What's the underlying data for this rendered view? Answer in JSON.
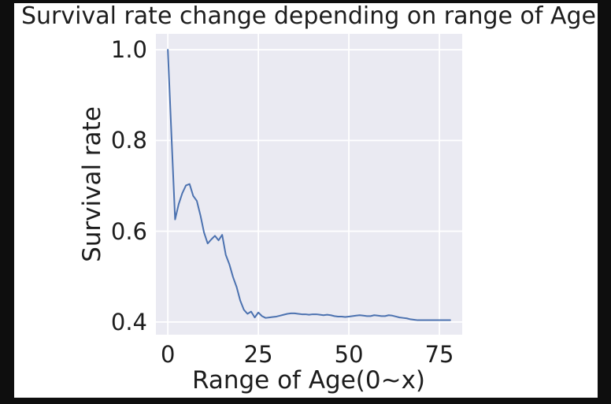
{
  "window": {
    "background_color": "#0e0e0e",
    "figure_background_color": "#ffffff"
  },
  "chart_data": {
    "type": "line",
    "title": "Survival rate change depending on range of Age",
    "xlabel": "Range of Age(0~x)",
    "ylabel": "Survival rate",
    "legend": false,
    "grid": true,
    "plot_background_color": "#EAEAF2",
    "grid_color": "#FFFFFF",
    "line_color": "#4C72B0",
    "text_color": "#1d1d1d",
    "x_ticks": [
      0,
      25,
      50,
      75
    ],
    "y_ticks": [
      1.0,
      0.8,
      0.6,
      0.4
    ],
    "xlim": [
      -3.3,
      81.3
    ],
    "ylim": [
      0.372,
      1.035
    ],
    "x": [
      0,
      1,
      2,
      3,
      4,
      5,
      6,
      7,
      8,
      9,
      10,
      11,
      12,
      13,
      14,
      15,
      16,
      17,
      18,
      19,
      20,
      21,
      22,
      23,
      24,
      25,
      26,
      27,
      28,
      29,
      30,
      31,
      32,
      33,
      34,
      35,
      36,
      37,
      38,
      39,
      40,
      41,
      42,
      43,
      44,
      45,
      46,
      47,
      48,
      49,
      50,
      51,
      52,
      53,
      54,
      55,
      56,
      57,
      58,
      59,
      60,
      61,
      62,
      63,
      64,
      65,
      66,
      67,
      68,
      69,
      70,
      71,
      72,
      73,
      74,
      75,
      76,
      77,
      78
    ],
    "y": [
      1.0,
      0.811,
      0.626,
      0.66,
      0.684,
      0.701,
      0.704,
      0.678,
      0.667,
      0.635,
      0.597,
      0.573,
      0.582,
      0.59,
      0.58,
      0.592,
      0.548,
      0.527,
      0.499,
      0.477,
      0.447,
      0.427,
      0.418,
      0.423,
      0.41,
      0.421,
      0.413,
      0.409,
      0.41,
      0.411,
      0.412,
      0.414,
      0.416,
      0.418,
      0.419,
      0.419,
      0.418,
      0.417,
      0.417,
      0.416,
      0.417,
      0.417,
      0.416,
      0.415,
      0.416,
      0.415,
      0.413,
      0.412,
      0.412,
      0.411,
      0.412,
      0.413,
      0.414,
      0.415,
      0.414,
      0.413,
      0.413,
      0.415,
      0.414,
      0.413,
      0.413,
      0.415,
      0.414,
      0.412,
      0.41,
      0.409,
      0.408,
      0.406,
      0.405,
      0.404,
      0.404,
      0.404,
      0.404,
      0.404,
      0.404,
      0.404,
      0.404,
      0.404,
      0.404
    ]
  }
}
